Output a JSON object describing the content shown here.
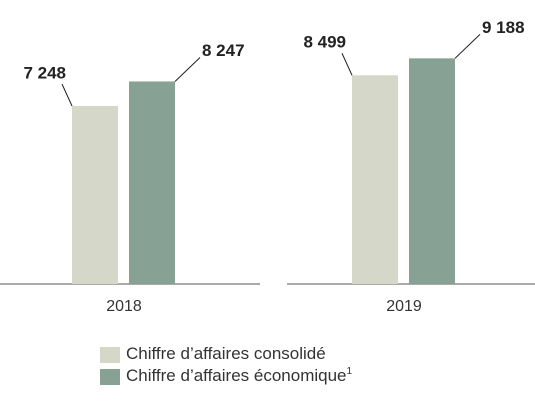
{
  "chart_data": {
    "type": "bar",
    "categories": [
      "2018",
      "2019"
    ],
    "series": [
      {
        "name": "Chiffre d’affaires consolidé",
        "color": "#d5d7c9",
        "values": [
          7248,
          8499
        ],
        "value_labels": [
          "7 248",
          "8 499"
        ]
      },
      {
        "name": "Chiffre d’affaires économique",
        "name_note": "1",
        "color": "#88a195",
        "values": [
          8247,
          9188
        ],
        "value_labels": [
          "8 247",
          "9 188"
        ]
      }
    ],
    "ylim": [
      0,
      10000
    ]
  }
}
